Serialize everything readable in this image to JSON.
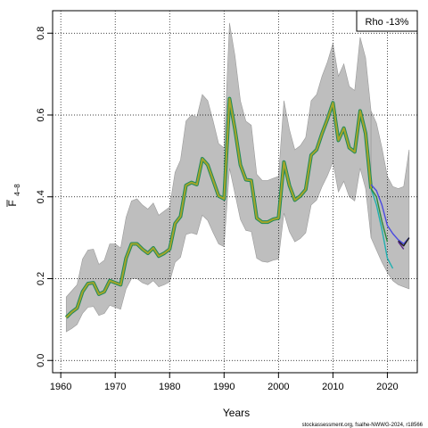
{
  "chart_data": {
    "type": "line",
    "xlabel": "Years",
    "ylabel_main": "F",
    "ylabel_sub": "4–8",
    "xlim": [
      1958.5,
      2025.5
    ],
    "ylim": [
      -0.03,
      0.855
    ],
    "x_ticks": [
      1960,
      1970,
      1980,
      1990,
      2000,
      2010,
      2020
    ],
    "y_ticks": [
      0.0,
      0.2,
      0.4,
      0.6,
      0.8
    ],
    "y_tick_labels": [
      "0.0",
      "0.2",
      "0.4",
      "0.6",
      "0.8"
    ],
    "grid": true,
    "legend": {
      "text": "Rho -13%",
      "position": "top-right"
    },
    "credit": "stockassessment.org, fsalhe-NWWG-2024, r18566",
    "colors": {
      "band": "#bebebe",
      "band_edge": "#9a9a9a",
      "main": "#a5a52a",
      "main_under": "#1f8a5a",
      "peel_a": "#4a4ae0",
      "peel_b": "#20b0b0",
      "peel_c": "#2a8a3a",
      "tail_dark": "#1a1a1a",
      "tail_purple": "#5a2a8a"
    },
    "years": [
      1961,
      1962,
      1963,
      1964,
      1965,
      1966,
      1967,
      1968,
      1969,
      1970,
      1971,
      1972,
      1973,
      1974,
      1975,
      1976,
      1977,
      1978,
      1979,
      1980,
      1981,
      1982,
      1983,
      1984,
      1985,
      1986,
      1987,
      1988,
      1989,
      1990,
      1991,
      1992,
      1993,
      1994,
      1995,
      1996,
      1997,
      1998,
      1999,
      2000,
      2001,
      2002,
      2003,
      2004,
      2005,
      2006,
      2007,
      2008,
      2009,
      2010,
      2011,
      2012,
      2013,
      2014,
      2015,
      2016,
      2017
    ],
    "series": [
      {
        "values": [
          0.105,
          0.118,
          0.128,
          0.168,
          0.188,
          0.19,
          0.162,
          0.168,
          0.195,
          0.19,
          0.185,
          0.25,
          0.285,
          0.285,
          0.272,
          0.262,
          0.275,
          0.255,
          0.262,
          0.272,
          0.335,
          0.352,
          0.428,
          0.435,
          0.43,
          0.493,
          0.478,
          0.44,
          0.402,
          0.395,
          0.64,
          0.565,
          0.478,
          0.442,
          0.44,
          0.348,
          0.338,
          0.338,
          0.345,
          0.348,
          0.485,
          0.428,
          0.392,
          0.402,
          0.418,
          0.502,
          0.515,
          0.555,
          0.59,
          0.63,
          0.538,
          0.568,
          0.52,
          0.51,
          0.61,
          0.555,
          0.42
        ]
      }
    ],
    "band_upper": [
      0.155,
      0.17,
      0.185,
      0.248,
      0.27,
      0.272,
      0.235,
      0.245,
      0.285,
      0.285,
      0.275,
      0.35,
      0.39,
      0.395,
      0.38,
      0.37,
      0.385,
      0.355,
      0.365,
      0.375,
      0.46,
      0.49,
      0.585,
      0.6,
      0.595,
      0.65,
      0.635,
      0.585,
      0.53,
      0.52,
      0.825,
      0.745,
      0.635,
      0.585,
      0.575,
      0.455,
      0.44,
      0.44,
      0.445,
      0.45,
      0.635,
      0.565,
      0.515,
      0.525,
      0.545,
      0.635,
      0.65,
      0.695,
      0.73,
      0.775,
      0.695,
      0.725,
      0.67,
      0.66,
      0.79,
      0.74,
      0.61
    ],
    "band_lower": [
      0.07,
      0.078,
      0.088,
      0.115,
      0.13,
      0.132,
      0.11,
      0.115,
      0.135,
      0.13,
      0.125,
      0.175,
      0.2,
      0.2,
      0.19,
      0.185,
      0.195,
      0.18,
      0.185,
      0.192,
      0.24,
      0.252,
      0.308,
      0.312,
      0.308,
      0.355,
      0.342,
      0.312,
      0.285,
      0.278,
      0.47,
      0.408,
      0.345,
      0.318,
      0.315,
      0.25,
      0.242,
      0.24,
      0.245,
      0.248,
      0.36,
      0.315,
      0.29,
      0.298,
      0.312,
      0.38,
      0.392,
      0.425,
      0.452,
      0.485,
      0.412,
      0.438,
      0.4,
      0.39,
      0.47,
      0.42,
      0.3
    ],
    "band_tail_x": [
      2017,
      2018,
      2019,
      2020,
      2021,
      2022,
      2023,
      2024
    ],
    "band_tail_upper": [
      0.61,
      0.58,
      0.52,
      0.45,
      0.425,
      0.42,
      0.425,
      0.515
    ],
    "band_tail_lower": [
      0.3,
      0.27,
      0.24,
      0.215,
      0.195,
      0.185,
      0.18,
      0.175
    ],
    "tails": [
      {
        "x": [
          2017,
          2018,
          2019,
          2020,
          2021,
          2022,
          2023,
          2024
        ],
        "values": [
          0.43,
          0.415,
          0.38,
          0.33,
          0.31,
          0.295,
          0.285,
          0.3
        ],
        "color": "peel_a"
      },
      {
        "x": [
          2017,
          2018,
          2019,
          2020,
          2021
        ],
        "values": [
          0.42,
          0.38,
          0.32,
          0.25,
          0.225
        ],
        "color": "peel_b"
      },
      {
        "x": [
          2017,
          2018,
          2019,
          2020
        ],
        "values": [
          0.42,
          0.4,
          0.34,
          0.29
        ],
        "color": "peel_c"
      },
      {
        "x": [
          2022,
          2023,
          2024
        ],
        "values": [
          0.292,
          0.28,
          0.3
        ],
        "color": "tail_dark"
      },
      {
        "x": [
          2022,
          2023
        ],
        "values": [
          0.29,
          0.272
        ],
        "color": "tail_purple"
      }
    ]
  }
}
